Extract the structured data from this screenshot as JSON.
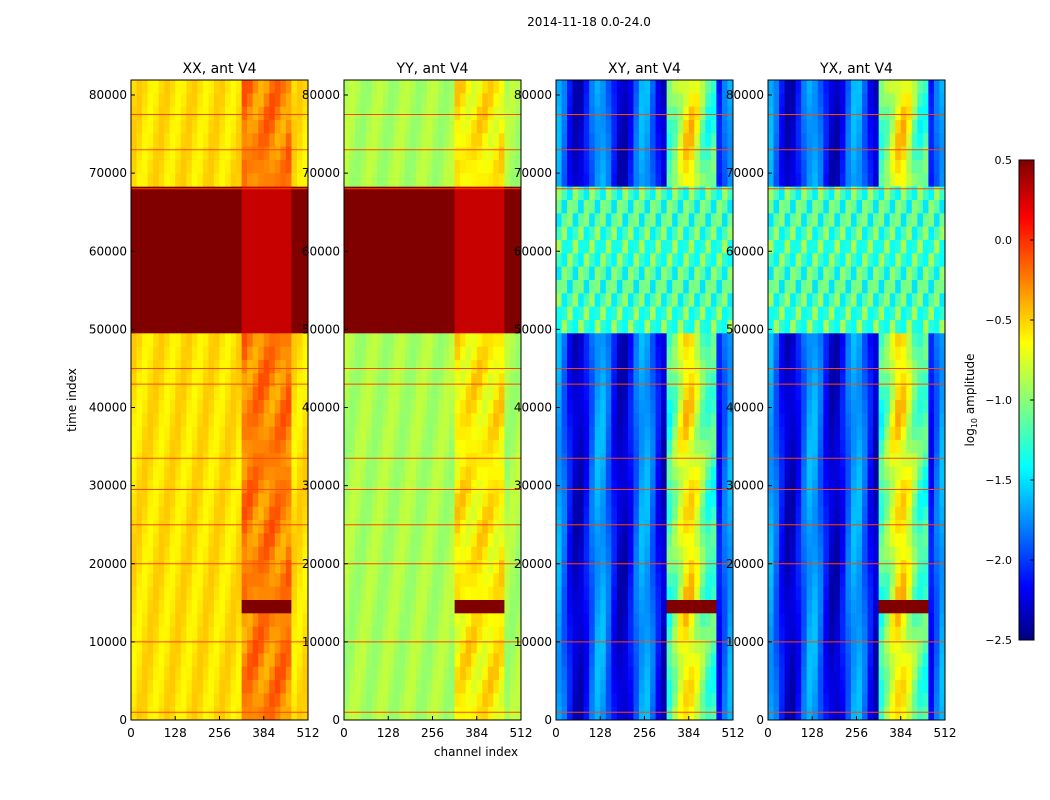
{
  "figure_title": "2014-11-18 0.0-24.0",
  "colors": {
    "background": "#ffffff",
    "jet_stops": [
      "#000080",
      "#0000ff",
      "#00ffff",
      "#ffff00",
      "#ff0000",
      "#800000"
    ]
  },
  "chart_data": [
    {
      "type": "heatmap",
      "title": "XX, ant V4",
      "xlabel": "",
      "ylabel": "time index",
      "x_ticks": [
        "0",
        "128",
        "256",
        "384",
        "512"
      ],
      "y_ticks": [
        "0",
        "10000",
        "20000",
        "30000",
        "40000",
        "50000",
        "60000",
        "70000",
        "80000"
      ],
      "xlim": [
        0,
        512
      ],
      "ylim": [
        0,
        81920
      ],
      "baseline_log_amplitude": -0.55,
      "rfi_region_channels": [
        320,
        470
      ],
      "saturated_time_ranges": [
        [
          49800,
          67500
        ],
        [
          12900,
          16000
        ]
      ],
      "colormap": "jet"
    },
    {
      "type": "heatmap",
      "title": "YY, ant V4",
      "xlabel": "channel index",
      "ylabel": "",
      "x_ticks": [
        "0",
        "128",
        "256",
        "384",
        "512"
      ],
      "y_ticks": [
        "0",
        "10000",
        "20000",
        "30000",
        "40000",
        "50000",
        "60000",
        "70000",
        "80000"
      ],
      "xlim": [
        0,
        512
      ],
      "ylim": [
        0,
        81920
      ],
      "baseline_log_amplitude": -0.9,
      "rfi_region_channels": [
        320,
        470
      ],
      "saturated_time_ranges": [
        [
          49800,
          67500
        ],
        [
          12900,
          16000
        ]
      ],
      "colormap": "jet"
    },
    {
      "type": "heatmap",
      "title": "XY, ant V4",
      "xlabel": "",
      "ylabel": "",
      "x_ticks": [
        "0",
        "128",
        "256",
        "384",
        "512"
      ],
      "y_ticks": [
        "0",
        "10000",
        "20000",
        "30000",
        "40000",
        "50000",
        "60000",
        "70000",
        "80000"
      ],
      "xlim": [
        0,
        512
      ],
      "ylim": [
        0,
        81920
      ],
      "baseline_log_amplitude": -2.0,
      "rfi_region_channels": [
        320,
        470
      ],
      "saturated_time_ranges": [
        [
          12900,
          16000
        ]
      ],
      "colormap": "jet"
    },
    {
      "type": "heatmap",
      "title": "YX, ant V4",
      "xlabel": "",
      "ylabel": "",
      "x_ticks": [
        "0",
        "128",
        "256",
        "384",
        "512"
      ],
      "y_ticks": [
        "0",
        "10000",
        "20000",
        "30000",
        "40000",
        "50000",
        "60000",
        "70000",
        "80000"
      ],
      "xlim": [
        0,
        512
      ],
      "ylim": [
        0,
        81920
      ],
      "baseline_log_amplitude": -2.0,
      "rfi_region_channels": [
        320,
        470
      ],
      "saturated_time_ranges": [
        [
          12900,
          16000
        ]
      ],
      "colormap": "jet"
    }
  ],
  "colorbar": {
    "label": "log10 amplitude",
    "label_base": "log",
    "label_sub": "10",
    "label_rest": " amplitude",
    "range": [
      -2.5,
      0.5
    ],
    "ticks": [
      "0.5",
      "0.0",
      "−0.5",
      "−1.0",
      "−1.5",
      "−2.0",
      "−2.5"
    ]
  }
}
